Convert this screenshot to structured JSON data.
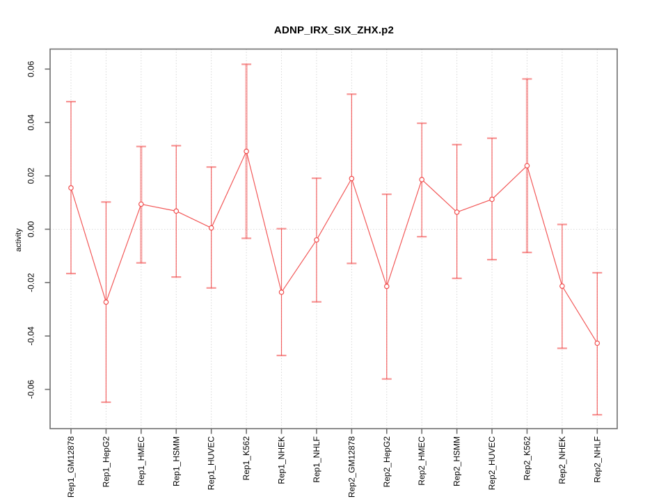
{
  "window": {
    "background": "#ffffff"
  },
  "chart_data": {
    "type": "line",
    "subtype": "points-with-error-bars",
    "title": "ADNP_IRX_SIX_ZHX.p2",
    "xlabel": "",
    "ylabel": "activity",
    "legend": "none",
    "grid": {
      "vertical_dotted_per_category": true,
      "horizontal_dotted_at_zero": true
    },
    "ylim": [
      -0.0747,
      0.0675
    ],
    "yticks": [
      0.06,
      0.04,
      0.02,
      0,
      -0.02,
      -0.04,
      -0.06
    ],
    "ytick_labels": [
      "0.06",
      "0.04",
      "0.02",
      "0.00",
      "-0.02",
      "-0.04",
      "-0.06"
    ],
    "categories": [
      "Rep1_GM12878",
      "Rep1_HepG2",
      "Rep1_HMEC",
      "Rep1_HSMM",
      "Rep1_HUVEC",
      "Rep1_K562",
      "Rep1_NHEK",
      "Rep1_NHLF",
      "Rep2_GM12878",
      "Rep2_HepG2",
      "Rep2_HMEC",
      "Rep2_HSMM",
      "Rep2_HUVEC",
      "Rep2_K562",
      "Rep2_NHEK",
      "Rep2_NHLF"
    ],
    "series": [
      {
        "name": "activity",
        "marker": "open-circle",
        "color": "#f03b3b",
        "values": [
          0.0155,
          -0.0273,
          0.0094,
          0.0068,
          0.0005,
          0.0292,
          -0.0236,
          -0.004,
          0.019,
          -0.0214,
          0.0186,
          0.0064,
          0.0112,
          0.0238,
          -0.0213,
          -0.0427
        ],
        "error_high": [
          0.0478,
          0.0102,
          0.031,
          0.0313,
          0.0233,
          0.0618,
          0.0002,
          0.0191,
          0.0506,
          0.0131,
          0.0397,
          0.0317,
          0.0341,
          0.0563,
          0.0018,
          -0.0163
        ],
        "error_low": [
          -0.0166,
          -0.0648,
          -0.0126,
          -0.0179,
          -0.022,
          -0.0034,
          -0.0473,
          -0.0272,
          -0.0128,
          -0.0561,
          -0.0028,
          -0.0184,
          -0.0114,
          -0.0087,
          -0.0446,
          -0.0695
        ],
        "wide_error_bar": [
          false,
          false,
          true,
          false,
          false,
          true,
          false,
          false,
          false,
          false,
          false,
          false,
          false,
          true,
          false,
          false
        ]
      }
    ]
  }
}
